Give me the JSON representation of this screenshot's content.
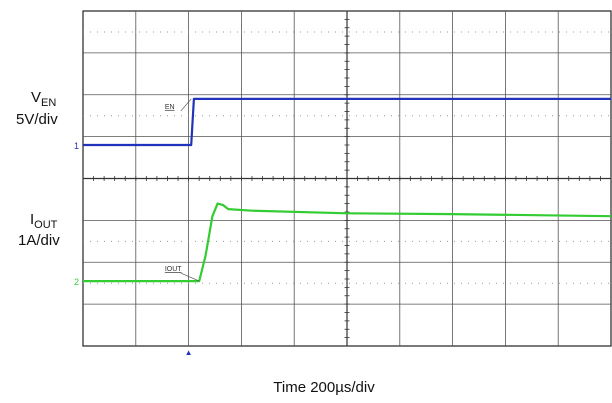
{
  "chart_data": {
    "type": "line",
    "title": "",
    "xlabel": "Time 200µs/div",
    "grid": true,
    "x_divisions": 10,
    "y_divisions": 8,
    "channels": [
      {
        "label_main": "V",
        "label_sub": "EN",
        "scale": "5V/div",
        "marker": "EN",
        "color": "#2233bb",
        "units_per_div": 5,
        "ground_div": 4.8,
        "x": [
          0,
          2.05,
          2.1,
          10
        ],
        "y": [
          0,
          0,
          5.5,
          5.5
        ]
      },
      {
        "label_main": "I",
        "label_sub": "OUT",
        "scale": "1A/div",
        "marker": "IOUT",
        "color": "#33cc33",
        "units_per_div": 1,
        "ground_div": 1.55,
        "x": [
          0,
          2.2,
          2.32,
          2.45,
          2.55,
          2.65,
          2.75,
          3.2,
          5,
          7,
          10
        ],
        "y": [
          0,
          0,
          0.6,
          1.55,
          1.85,
          1.82,
          1.72,
          1.68,
          1.62,
          1.6,
          1.55
        ]
      }
    ],
    "trigger_marker": "▲"
  }
}
